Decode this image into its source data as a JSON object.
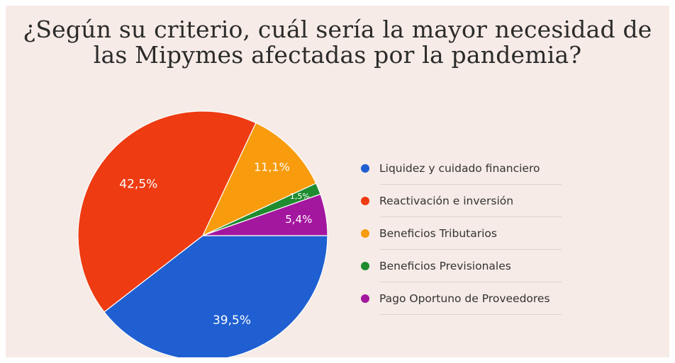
{
  "chart_data": {
    "type": "pie",
    "title_lines": [
      "¿Según su criterio, cuál sería la mayor necesidad de",
      "las Mipymes afectadas por la pandemia?"
    ],
    "slices": [
      {
        "label": "Liquidez y cuidado financiero",
        "value": 39.5,
        "display": "39,5%",
        "color": "#1f5fd1"
      },
      {
        "label": "Reactivación e inversión",
        "value": 42.5,
        "display": "42,5%",
        "color": "#ee3b12"
      },
      {
        "label": "Beneficios Tributarios",
        "value": 11.1,
        "display": "11,1%",
        "color": "#f89b0c"
      },
      {
        "label": "Beneficios Previsionales",
        "value": 1.5,
        "display": "1,5%",
        "color": "#1e8c2f"
      },
      {
        "label": "Pago Oportuno de Proveedores",
        "value": 5.4,
        "display": "5,4%",
        "color": "#a3169e"
      }
    ],
    "legend_position": "right"
  }
}
